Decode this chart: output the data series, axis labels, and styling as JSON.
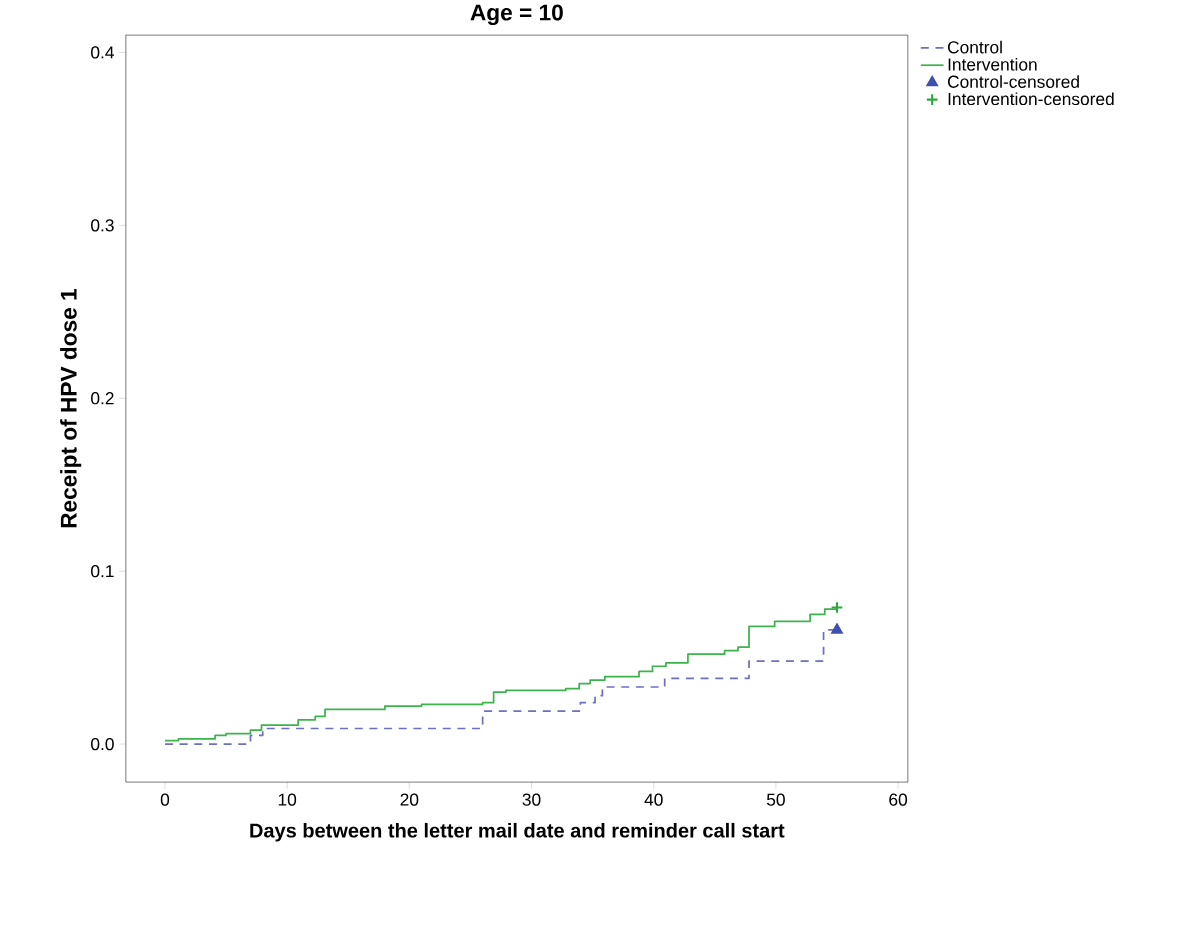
{
  "chart_data": {
    "type": "step",
    "title": "Age = 10",
    "xlabel": "Days between the letter mail date and reminder call start",
    "ylabel": "Receipt of HPV dose 1",
    "xlim": [
      -3.2,
      60.8
    ],
    "ylim": [
      -0.022,
      0.41
    ],
    "xticks": [
      0,
      10,
      20,
      30,
      40,
      50,
      60
    ],
    "yticks": [
      {
        "value": 0,
        "label": "0.0"
      },
      {
        "value": 0.1,
        "label": "0.1"
      },
      {
        "value": 0.2,
        "label": "0.2"
      },
      {
        "value": 0.3,
        "label": "0.3"
      },
      {
        "value": 0.4,
        "label": "0.4"
      }
    ],
    "grid": false,
    "legend": "right",
    "series": [
      {
        "name": "Control",
        "color": "#6b70c4",
        "line_style": "dashed",
        "marker": "none",
        "x": [
          0,
          7,
          8,
          26,
          34,
          35.2,
          35.8,
          40.9,
          47.8,
          53.9,
          55
        ],
        "values": [
          0,
          0.005,
          0.009,
          0.019,
          0.024,
          0.028,
          0.033,
          0.038,
          0.048,
          0.066,
          0.066
        ]
      },
      {
        "name": "Intervention",
        "color": "#3cb44b",
        "line_style": "solid",
        "marker": "none",
        "x": [
          0,
          1.1,
          4.1,
          5,
          7,
          7.9,
          10.9,
          12.3,
          13.1,
          18,
          21,
          26,
          26.9,
          27.9,
          32.8,
          33.9,
          34.8,
          36,
          38.8,
          39.9,
          41,
          42.8,
          45.8,
          46.9,
          47.8,
          49.9,
          52.8,
          54,
          55
        ],
        "values": [
          0.002,
          0.003,
          0.005,
          0.006,
          0.008,
          0.011,
          0.014,
          0.016,
          0.02,
          0.022,
          0.023,
          0.024,
          0.03,
          0.031,
          0.032,
          0.035,
          0.037,
          0.039,
          0.042,
          0.045,
          0.047,
          0.052,
          0.054,
          0.056,
          0.068,
          0.071,
          0.075,
          0.078,
          0.078
        ]
      },
      {
        "name": "Control-censored",
        "type": "scatter",
        "color": "#3f4fb0",
        "marker": "triangle",
        "x": [
          55
        ],
        "values": [
          0.066
        ]
      },
      {
        "name": "Intervention-censored",
        "type": "scatter",
        "color": "#2eaa3c",
        "marker": "cross",
        "x": [
          55
        ],
        "values": [
          0.079
        ]
      }
    ]
  }
}
